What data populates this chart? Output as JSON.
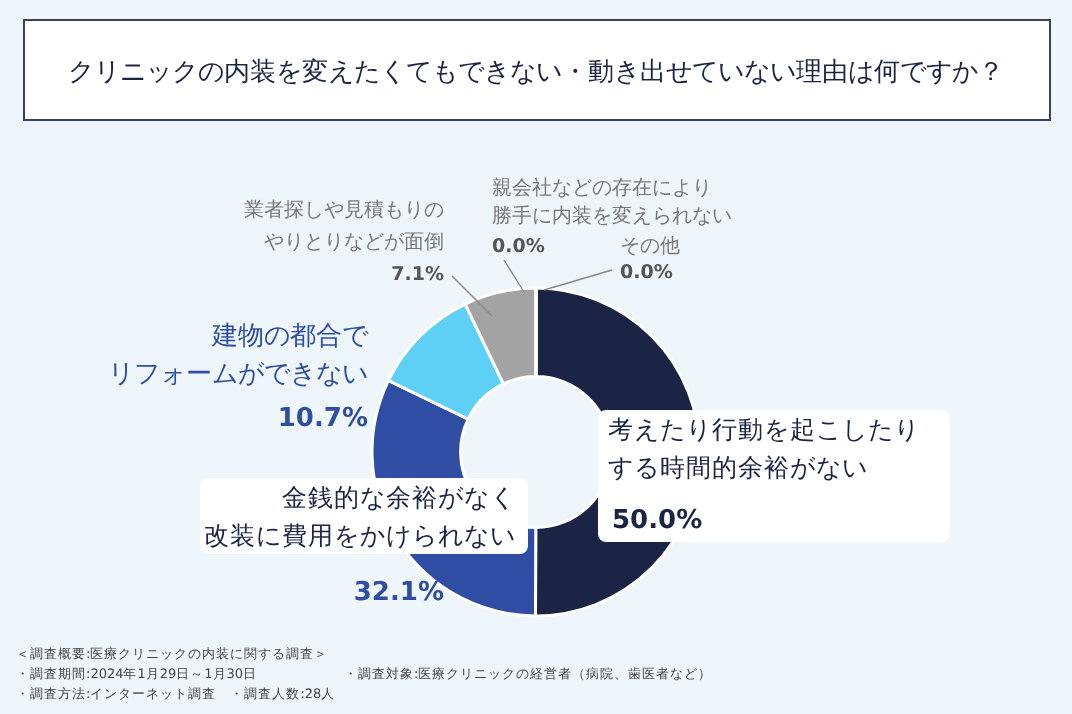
{
  "chart_data": {
    "type": "donut",
    "title": "クリニックの内装を変えたくてもできない・動き出せていない理由は何ですか？",
    "categories": [
      "考えたり行動を起こしたりする時間的余裕がない",
      "金銭的な余裕がなく改装に費用をかけられない",
      "建物の都合でリフォームができない",
      "業者探しや見積もりのやりとりなどが面倒",
      "親会社などの存在により勝手に内装を変えられない",
      "その他"
    ],
    "values": [
      50.0,
      32.1,
      10.7,
      7.1,
      0.0,
      0.0
    ],
    "value_labels": [
      "50.0%",
      "32.1%",
      "10.7%",
      "7.1%",
      "0.0%",
      "0.0%"
    ],
    "colors": [
      "#1b2444",
      "#2f4ea3",
      "#5fd0f5",
      "#a3a3a3",
      "#a3a3a3",
      "#a3a3a3"
    ],
    "annotations": [
      "＜調査概要:医療クリニックの内装に関する調査＞",
      "・調査期間:2024年1月29日～1月30日",
      "・調査方法:インターネット調査　・調査人数:28人",
      "・調査対象:医療クリニックの経営者（病院、歯医者など）"
    ]
  }
}
